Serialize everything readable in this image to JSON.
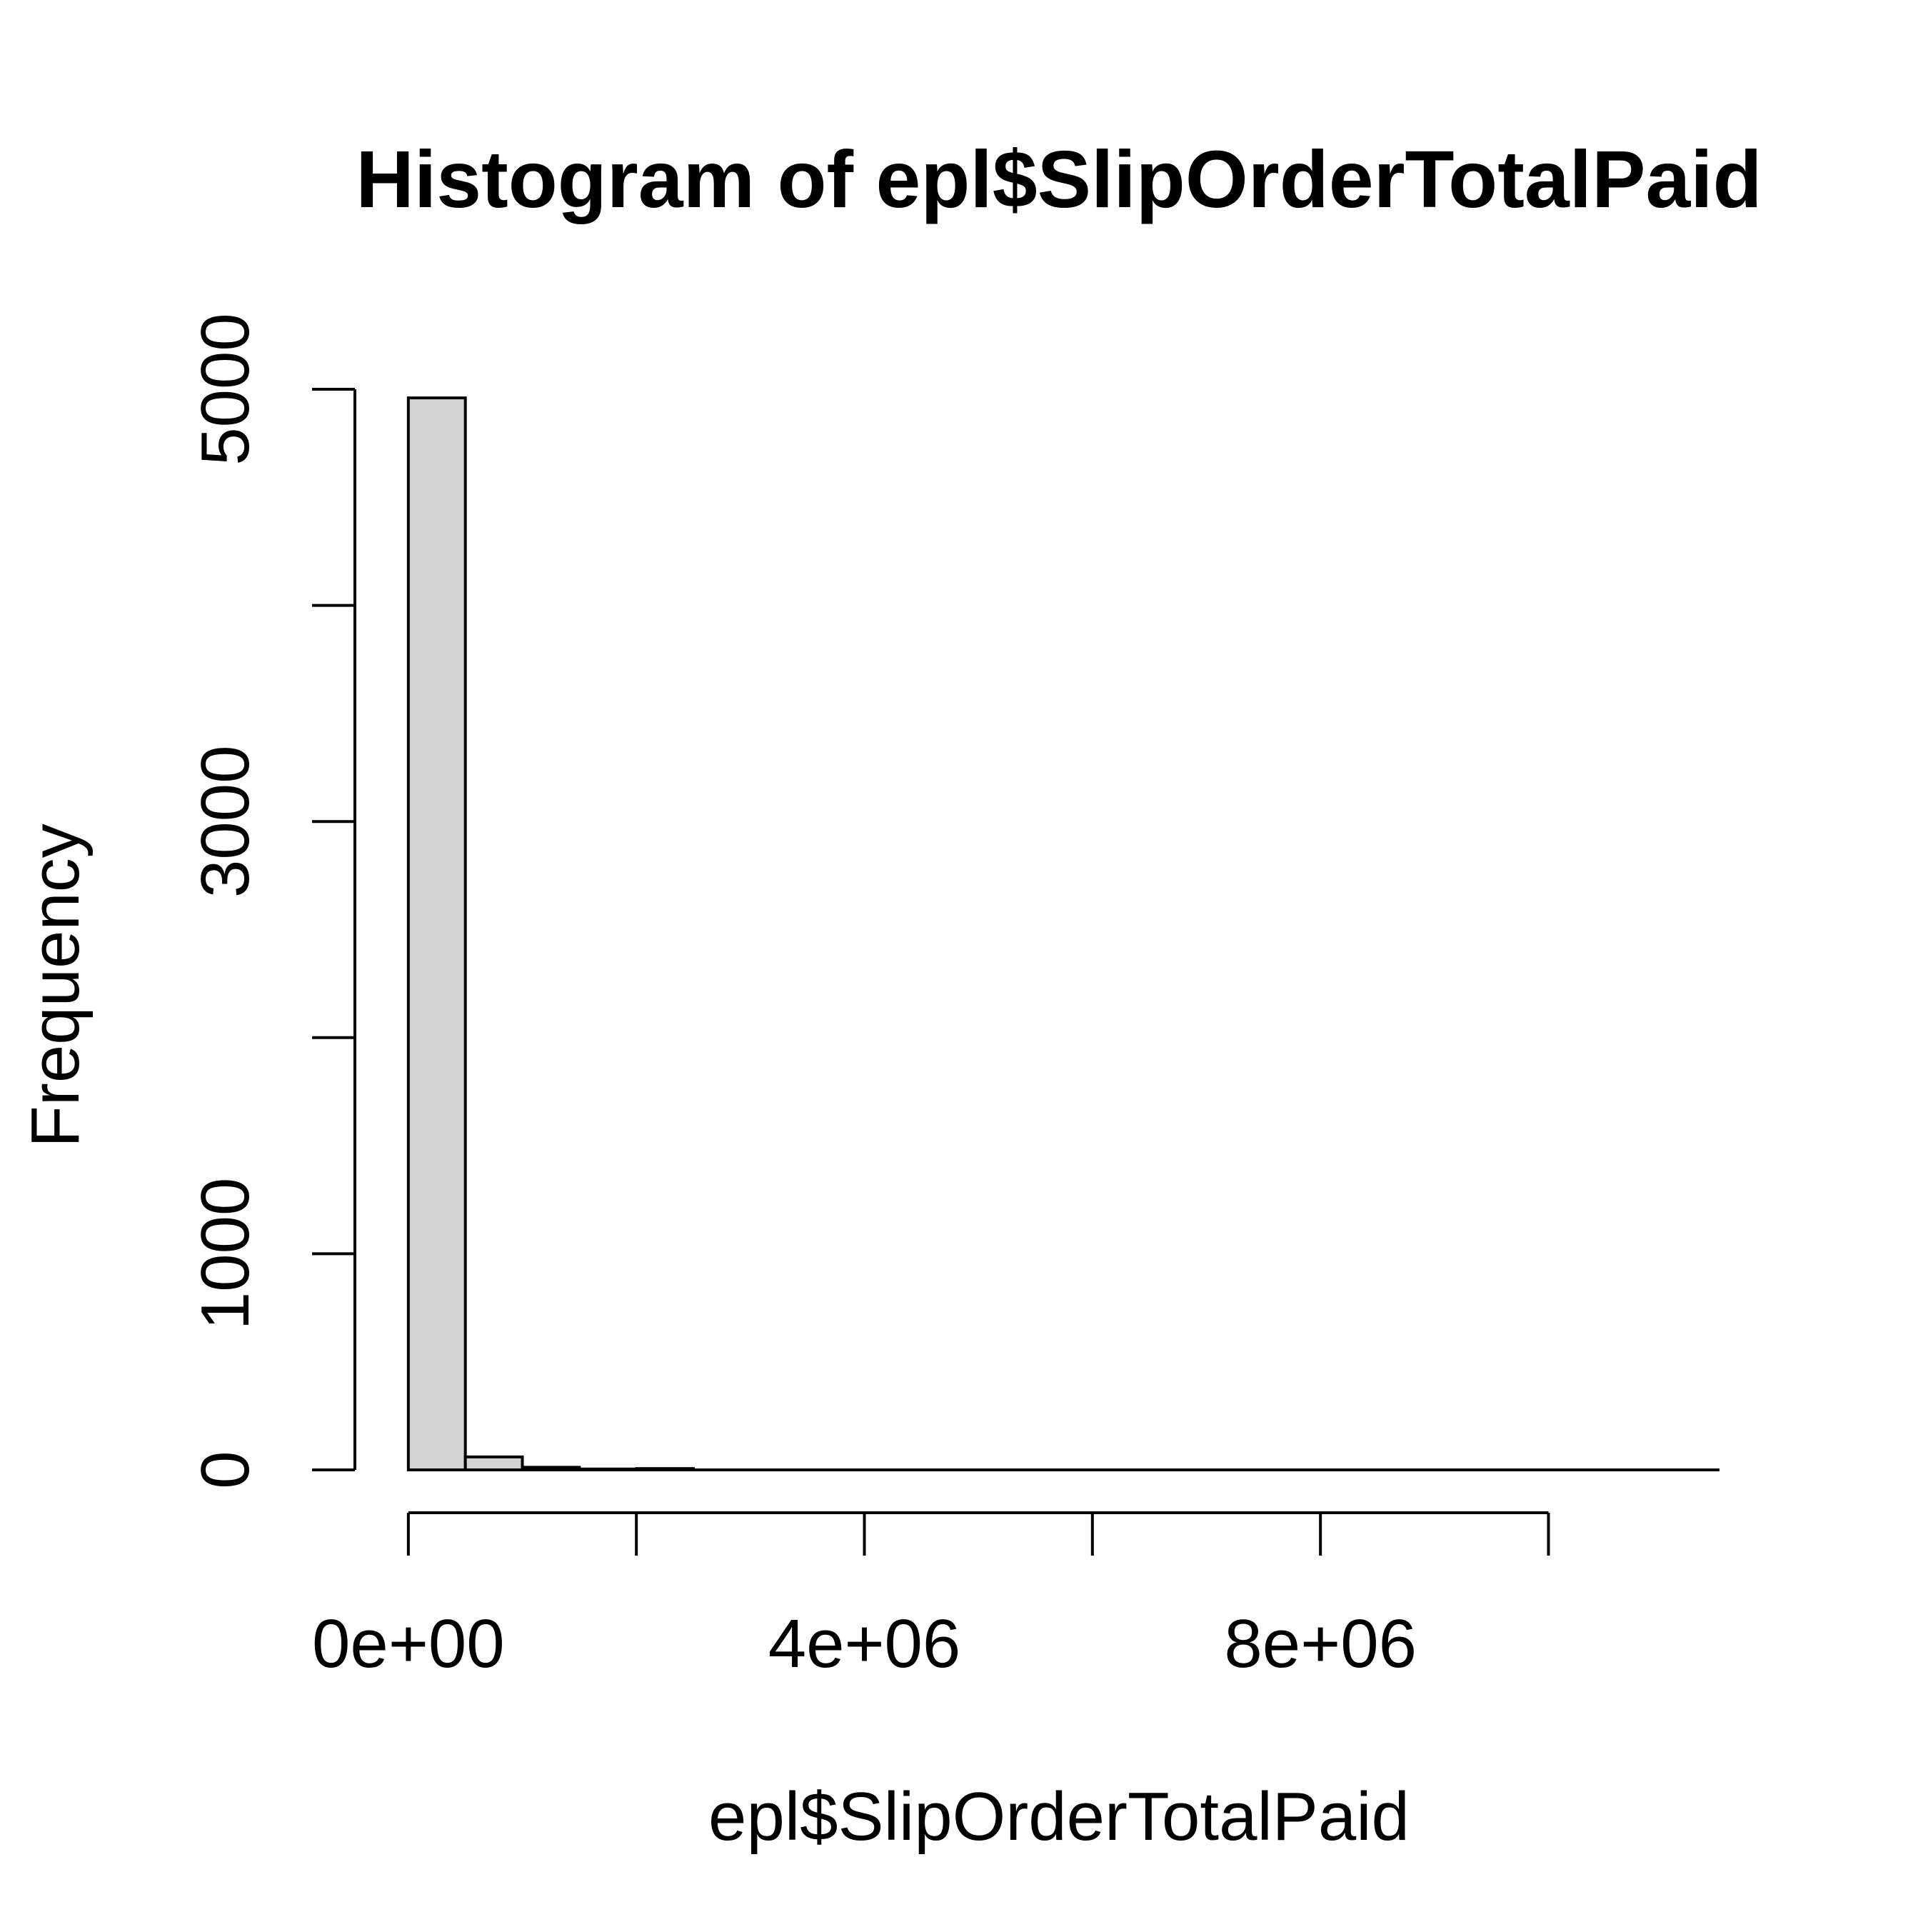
{
  "chart_data": {
    "type": "bar",
    "title": "Histogram of epl$SlipOrderTotalPaid",
    "xlabel": "epl$SlipOrderTotalPaid",
    "ylabel": "Frequency",
    "bin_edges": [
      0,
      500000,
      1000000,
      1500000,
      2000000,
      2500000
    ],
    "values": [
      4960,
      60,
      12,
      4,
      6
    ],
    "xlim": [
      -450000,
      11500000
    ],
    "ylim": [
      0,
      5000
    ],
    "x_axis_range": [
      0,
      10000000
    ],
    "x_ticks": [
      0,
      2000000,
      4000000,
      6000000,
      8000000,
      10000000
    ],
    "x_tick_labels": [
      "0e+00",
      "",
      "4e+06",
      "",
      "8e+06",
      ""
    ],
    "y_ticks": [
      0,
      1000,
      2000,
      3000,
      4000,
      5000
    ],
    "y_tick_labels": [
      "0",
      "1000",
      "",
      "3000",
      "",
      "5000"
    ],
    "grid": false,
    "legend": "none",
    "bar_fill": "#d3d3d3",
    "bar_stroke": "#000000"
  }
}
